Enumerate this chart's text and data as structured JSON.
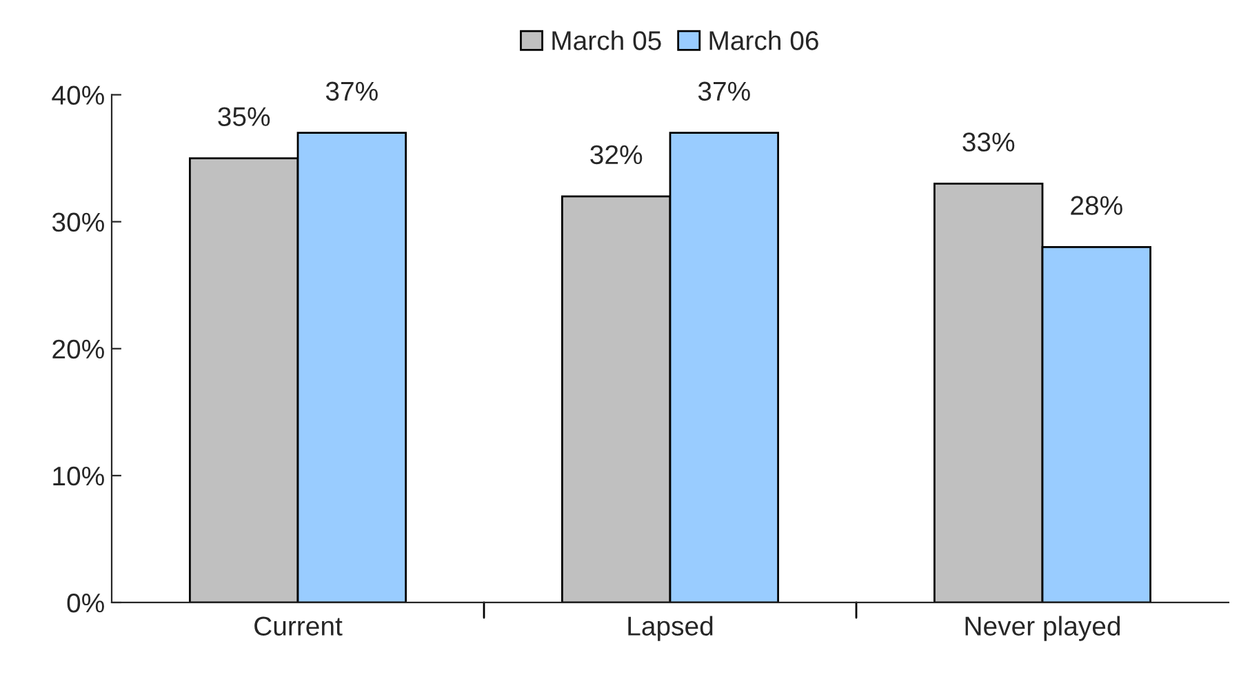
{
  "chart_data": {
    "type": "bar",
    "categories": [
      "Current",
      "Lapsed",
      "Never played"
    ],
    "series": [
      {
        "name": "March 05",
        "color": "#c0c0c0",
        "values": [
          35,
          32,
          33
        ],
        "value_labels": [
          "35%",
          "32%",
          "33%"
        ]
      },
      {
        "name": "March 06",
        "color": "#99ccff",
        "values": [
          37,
          37,
          28
        ],
        "value_labels": [
          "37%",
          "37%",
          "28%"
        ]
      }
    ],
    "ylim": [
      0,
      40
    ],
    "yticks": [
      {
        "value": 0,
        "label": "0%"
      },
      {
        "value": 10,
        "label": "10%"
      },
      {
        "value": 20,
        "label": "20%"
      },
      {
        "value": 30,
        "label": "30%"
      },
      {
        "value": 40,
        "label": "40%"
      }
    ],
    "grid": false,
    "legend": "top"
  }
}
